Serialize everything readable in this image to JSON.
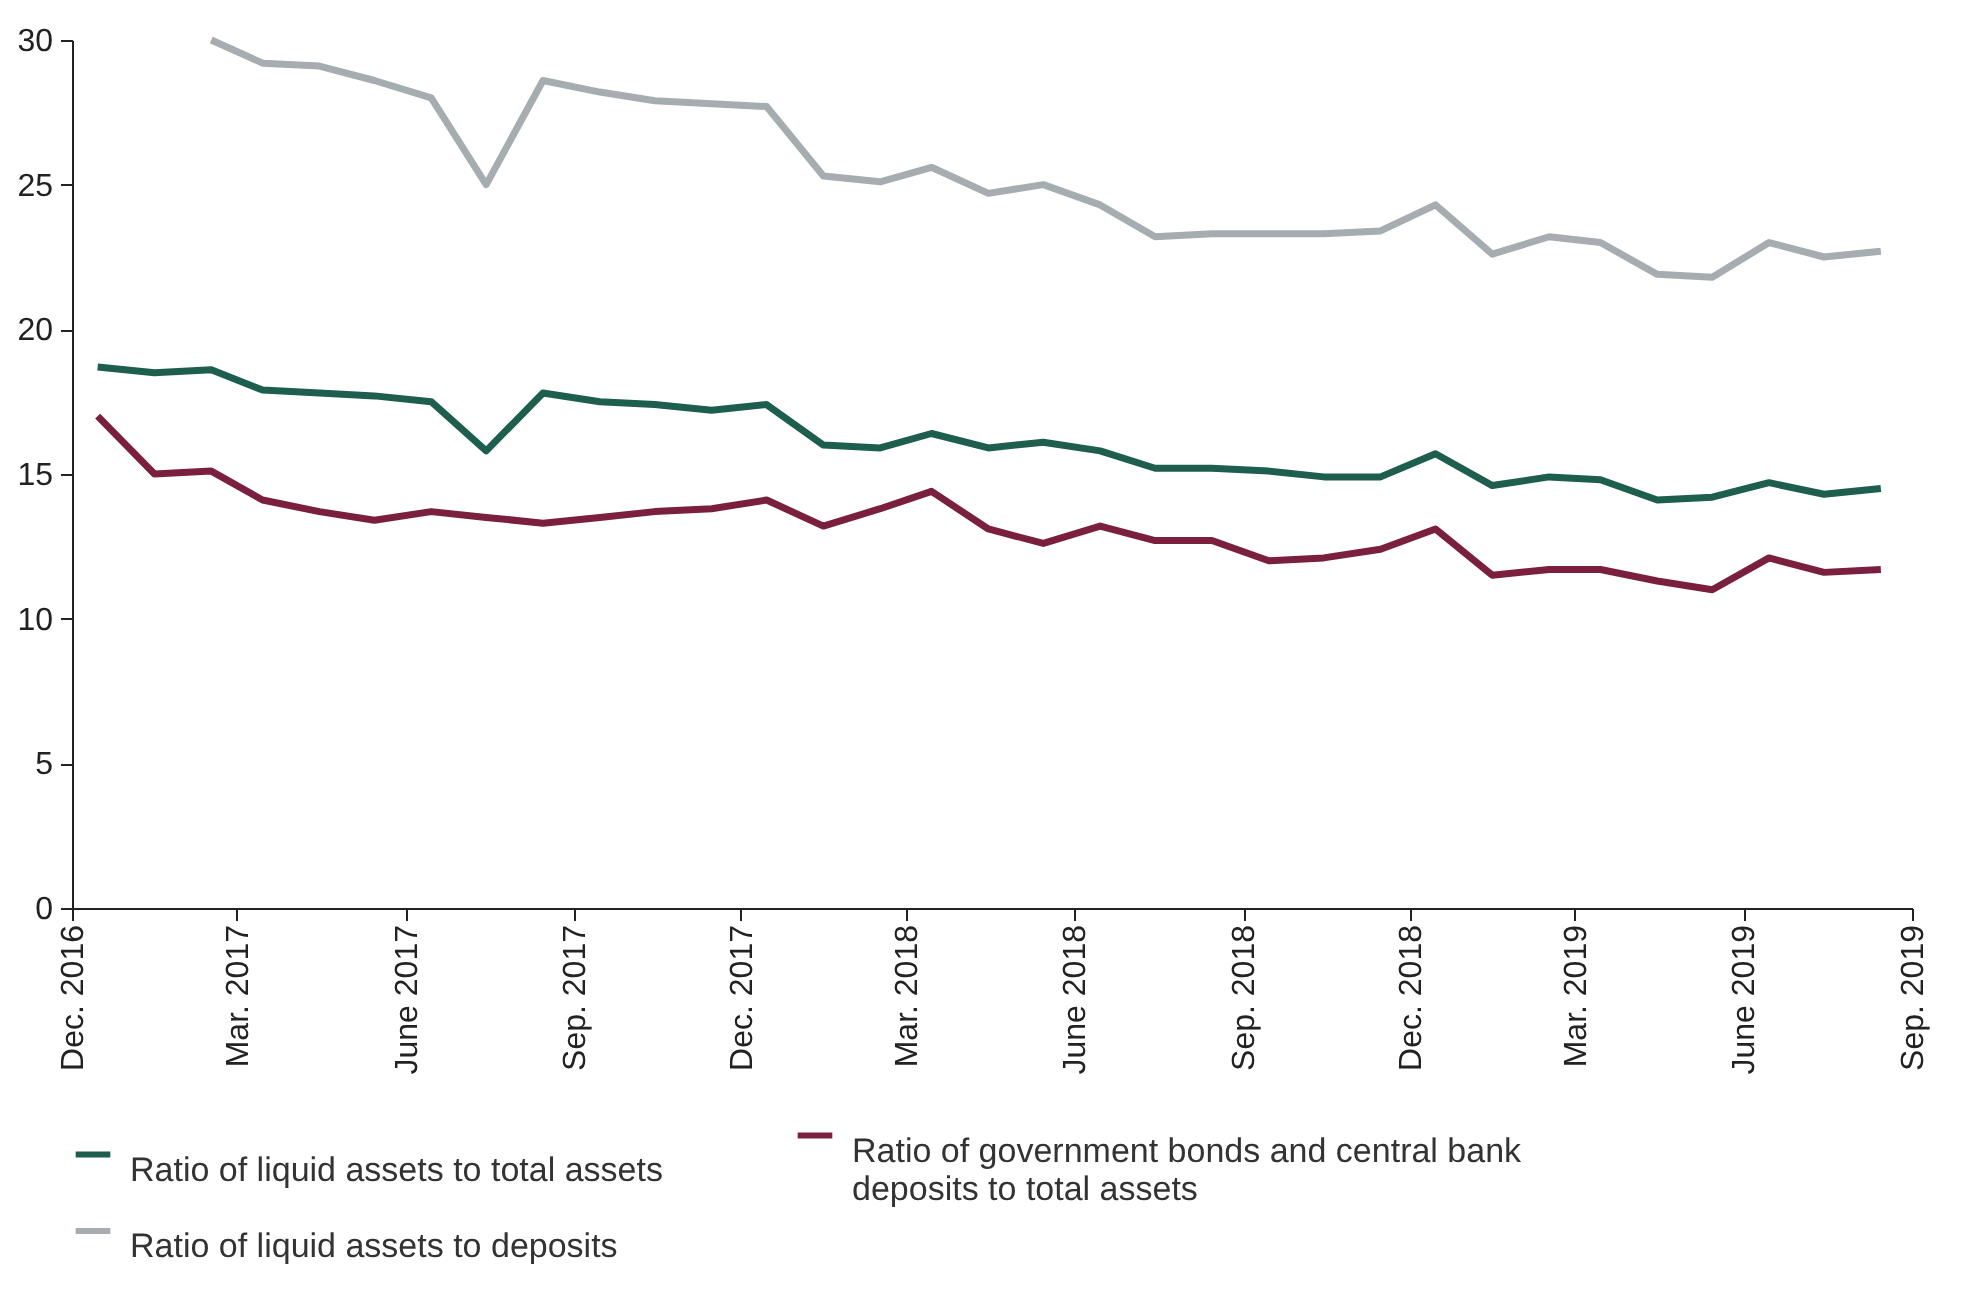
{
  "chart_data": {
    "type": "line",
    "x": [
      "2016-12-15",
      "2017-01-15",
      "2017-02-15",
      "2017-03-15",
      "2017-04-15",
      "2017-05-15",
      "2017-06-15",
      "2017-07-15",
      "2017-08-15",
      "2017-09-15",
      "2017-10-15",
      "2017-11-15",
      "2017-12-15",
      "2018-01-15",
      "2018-02-15",
      "2018-03-15",
      "2018-04-15",
      "2018-05-15",
      "2018-06-15",
      "2018-07-15",
      "2018-08-15",
      "2018-09-15",
      "2018-10-15",
      "2018-11-15",
      "2018-12-15",
      "2019-01-15",
      "2019-02-15",
      "2019-03-15",
      "2019-04-15",
      "2019-05-15",
      "2019-06-15",
      "2019-07-15",
      "2019-08-15"
    ],
    "series": [
      {
        "name": "Ratio of liquid assets to total assets",
        "color": "#1d5e4f",
        "values": [
          18.7,
          18.5,
          18.6,
          17.9,
          17.8,
          17.7,
          17.5,
          15.8,
          17.8,
          17.5,
          17.4,
          17.2,
          17.4,
          16.0,
          15.9,
          16.4,
          15.9,
          16.1,
          15.8,
          15.2,
          15.2,
          15.1,
          14.9,
          14.9,
          15.7,
          14.6,
          14.9,
          14.8,
          14.1,
          14.2,
          14.7,
          14.3,
          14.5
        ]
      },
      {
        "name": "Ratio of government bonds and central bank deposits to total assets",
        "color": "#7a1f3e",
        "values": [
          17.0,
          15.0,
          15.1,
          14.1,
          13.7,
          13.4,
          13.7,
          13.5,
          13.3,
          13.5,
          13.7,
          13.8,
          14.1,
          13.2,
          13.8,
          14.4,
          13.1,
          12.6,
          13.2,
          12.7,
          12.7,
          12.0,
          12.1,
          12.4,
          13.1,
          11.5,
          11.7,
          11.7,
          11.3,
          11.0,
          12.1,
          11.6,
          11.7
        ]
      },
      {
        "name": "Ratio of liquid assets to deposits",
        "color": "#a6adb0",
        "values": [
          null,
          null,
          30.0,
          29.2,
          29.1,
          28.6,
          28.0,
          25.0,
          28.6,
          28.2,
          27.9,
          27.8,
          27.7,
          25.3,
          25.1,
          25.6,
          24.7,
          25.0,
          24.3,
          23.2,
          23.3,
          23.3,
          23.3,
          23.4,
          24.3,
          22.6,
          23.2,
          23.0,
          21.9,
          21.8,
          23.0,
          22.5,
          22.7
        ]
      }
    ],
    "xlim": [
      "2016-12-01",
      "2019-09-01"
    ],
    "xticks": [
      {
        "value": "2016-12",
        "label": "Dec. 2016"
      },
      {
        "value": "2017-03",
        "label": "Mar. 2017"
      },
      {
        "value": "2017-06",
        "label": "June 2017"
      },
      {
        "value": "2017-09",
        "label": "Sep. 2017"
      },
      {
        "value": "2017-12",
        "label": "Dec. 2017"
      },
      {
        "value": "2018-03",
        "label": "Mar. 2018"
      },
      {
        "value": "2018-06",
        "label": "June 2018"
      },
      {
        "value": "2018-09",
        "label": "Sep. 2018"
      },
      {
        "value": "2018-12",
        "label": "Dec. 2018"
      },
      {
        "value": "2019-03",
        "label": "Mar. 2019"
      },
      {
        "value": "2019-06",
        "label": "June 2019"
      },
      {
        "value": "2019-09",
        "label": "Sep. 2019"
      }
    ],
    "ylim": [
      0,
      30
    ],
    "yticks": [
      0,
      5,
      10,
      15,
      20,
      25,
      30
    ],
    "grid": false,
    "legend": "bottom",
    "marker": "none",
    "line_style": "solid"
  }
}
